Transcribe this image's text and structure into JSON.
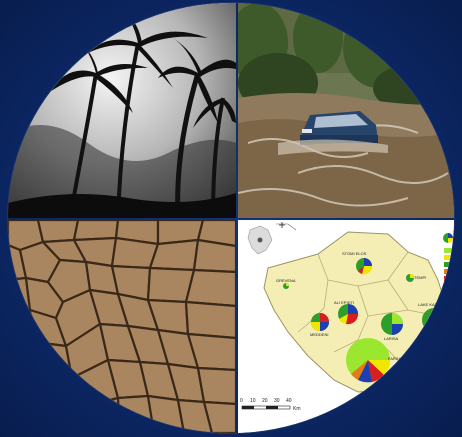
{
  "collage": {
    "quadrants": [
      {
        "id": "storm",
        "subject": "palm-trees-silhouette"
      },
      {
        "id": "flood",
        "subject": "car-in-floodwater"
      },
      {
        "id": "drought",
        "subject": "cracked-dry-earth"
      },
      {
        "id": "map",
        "subject": "regional-map-with-pie-charts"
      }
    ]
  },
  "map": {
    "labels": {
      "grevena": "GREVENA",
      "kastoria": "STOMI ELOS",
      "karditsa_top": "TEMPI",
      "trikala": "ALI EPIDTI",
      "meteora": "MEDDENI",
      "larisa_lake": "LAKE KARLA",
      "larisa": "LARISA",
      "farsala": "FARSALA"
    },
    "scale": {
      "ticks": [
        "0",
        "10",
        "20",
        "30",
        "40"
      ],
      "unit": "Km"
    },
    "colors": {
      "land": "#f4eeb4",
      "border": "#9c9462",
      "pie_green": "#2e9e2a",
      "pie_yellow": "#f2e600",
      "pie_blue": "#1e3fb0",
      "pie_red": "#d81f1f",
      "pie_lime": "#9be62e",
      "pie_orange": "#e67a1a"
    }
  }
}
